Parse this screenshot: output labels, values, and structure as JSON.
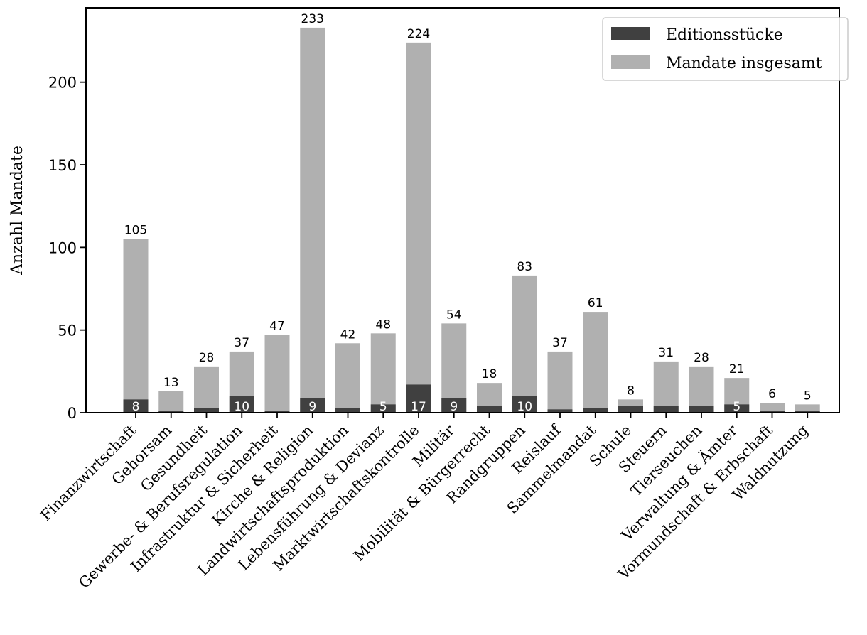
{
  "chart_data": {
    "type": "bar",
    "title": "",
    "xlabel": "",
    "ylabel": "Anzahl Mandate",
    "ylim": [
      0,
      245
    ],
    "yticks": [
      0,
      50,
      100,
      150,
      200
    ],
    "grid": false,
    "legend_position": "top-right",
    "categories": [
      "Finanzwirtschaft",
      "Gehorsam",
      "Gesundheit",
      "Gewerbe- & Berufsregulation",
      "Infrastruktur & Sicherheit",
      "Kirche & Religion",
      "Landwirtschaftsproduktion",
      "Lebensführung & Devianz",
      "Marktwirtschaftskontrolle",
      "Militär",
      "Mobilität & Bürgerrecht",
      "Randgruppen",
      "Reislauf",
      "Sammelmandat",
      "Schule",
      "Steuern",
      "Tierseuchen",
      "Verwaltung & Ämter",
      "Vormundschaft & Erbschaft",
      "Waldnutzung"
    ],
    "series": [
      {
        "name": "Editionsstücke",
        "color": "#404040",
        "values": [
          8,
          1,
          3,
          10,
          1,
          9,
          3,
          5,
          17,
          9,
          4,
          10,
          2,
          3,
          4,
          4,
          4,
          5,
          1,
          1
        ],
        "labels": [
          "8",
          "",
          "",
          "10",
          "",
          "9",
          "",
          "5",
          "17",
          "9",
          "",
          "10",
          "",
          "",
          "",
          "",
          "",
          "5",
          "",
          ""
        ]
      },
      {
        "name": "Mandate insgesamt",
        "color": "#b0b0b0",
        "values": [
          105,
          13,
          28,
          37,
          47,
          233,
          42,
          48,
          224,
          54,
          18,
          83,
          37,
          61,
          8,
          31,
          28,
          21,
          6,
          5
        ],
        "labels": [
          "105",
          "13",
          "28",
          "37",
          "47",
          "233",
          "42",
          "48",
          "224",
          "54",
          "18",
          "83",
          "37",
          "61",
          "8",
          "31",
          "28",
          "21",
          "6",
          "5"
        ]
      }
    ]
  }
}
